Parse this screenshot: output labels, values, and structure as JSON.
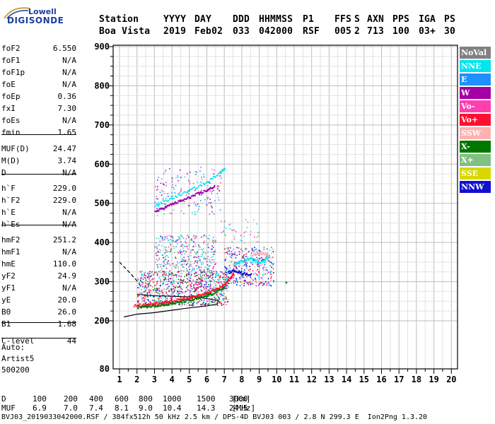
{
  "logo": {
    "line1": "Lowell",
    "line2": "DIGISONDE"
  },
  "header": {
    "labels": [
      "Station",
      "YYYY",
      "DAY",
      "DDD",
      "HHMMSS",
      "P1",
      "FFS",
      "S",
      "AXN",
      "PPS",
      "IGA",
      "PS"
    ],
    "values": [
      "Boa Vista",
      "2019",
      "Feb02",
      "033",
      "042000",
      "RSF",
      "005",
      "2",
      "713",
      "100",
      "03+",
      "30"
    ]
  },
  "params": {
    "group1": [
      {
        "name": "foF2",
        "value": "6.550"
      },
      {
        "name": "foF1",
        "value": "N/A"
      },
      {
        "name": "foF1p",
        "value": "N/A"
      },
      {
        "name": "foE",
        "value": "N/A"
      },
      {
        "name": "foEp",
        "value": "0.36"
      },
      {
        "name": "fxI",
        "value": "7.30"
      },
      {
        "name": "foEs",
        "value": "N/A"
      },
      {
        "name": "fmin",
        "value": "1.65"
      }
    ],
    "group2": [
      {
        "name": "MUF(D)",
        "value": "24.47"
      },
      {
        "name": "M(D)",
        "value": "3.74"
      },
      {
        "name": "D",
        "value": "N/A"
      }
    ],
    "group3": [
      {
        "name": "h`F",
        "value": "229.0"
      },
      {
        "name": "h`F2",
        "value": "229.0"
      },
      {
        "name": "h`E",
        "value": "N/A"
      },
      {
        "name": "h`Es",
        "value": "N/A"
      }
    ],
    "group4": [
      {
        "name": "hmF2",
        "value": "251.2"
      },
      {
        "name": "hmF1",
        "value": "N/A"
      },
      {
        "name": "hmE",
        "value": "110.0"
      },
      {
        "name": "yF2",
        "value": "24.9"
      },
      {
        "name": "yF1",
        "value": "N/A"
      },
      {
        "name": "yE",
        "value": "20.0"
      },
      {
        "name": "B0",
        "value": "26.0"
      },
      {
        "name": "B1",
        "value": "1.68"
      }
    ],
    "group5": [
      {
        "name": "C-level",
        "value": "44"
      }
    ]
  },
  "auto": [
    "Auto:",
    "Artist5",
    "500200"
  ],
  "legend": [
    {
      "label": "NoVal",
      "color": "#808080"
    },
    {
      "label": "NNE",
      "color": "#00e5f0"
    },
    {
      "label": "E",
      "color": "#1e90ff"
    },
    {
      "label": "W",
      "color": "#a400a4"
    },
    {
      "label": "Vo-",
      "color": "#ff3fb0"
    },
    {
      "label": "Vo+",
      "color": "#ff1030"
    },
    {
      "label": "SSW",
      "color": "#ffb0b0"
    },
    {
      "label": "X-",
      "color": "#007800"
    },
    {
      "label": "X+",
      "color": "#80c080"
    },
    {
      "label": "SSE",
      "color": "#d8d800"
    },
    {
      "label": "NNW",
      "color": "#1010d0"
    }
  ],
  "bottom": {
    "d_label": "D",
    "d_values": [
      "100",
      "200",
      "400",
      "600",
      "800",
      "1000",
      "1500",
      "3000"
    ],
    "d_unit": "[km]",
    "muf_label": "MUF",
    "muf_values": [
      "6.9",
      "7.0",
      "7.4",
      "8.1",
      "9.0",
      "10.4",
      "14.3",
      "24.5"
    ],
    "muf_unit": "[MHz]",
    "footer": "BVJ03_2019033042000.RSF / 384fx512h 50 kHz 2.5 km / DPS-4D BVJ03 003 / 2.8 N 299.3 E  Ion2Png 1.3.20"
  },
  "chart_data": {
    "type": "scatter",
    "x_ticks": [
      1,
      2,
      3,
      4,
      5,
      6,
      7,
      8,
      9,
      10,
      11,
      12,
      13,
      14,
      15,
      16,
      17,
      18,
      19,
      20
    ],
    "y_ticks": [
      80,
      200,
      300,
      400,
      500,
      600,
      700,
      800,
      900
    ],
    "xlim": [
      1,
      20
    ],
    "ylim": [
      80,
      900
    ],
    "y_axis_note": "nonlinear: 80 at bottom, linear 200-900",
    "grid": true,
    "traces": [
      {
        "name": "Vo+",
        "color": "#ff1030",
        "points": [
          [
            1.8,
            240
          ],
          [
            2.5,
            243
          ],
          [
            3,
            246
          ],
          [
            3.5,
            249
          ],
          [
            4,
            252
          ],
          [
            4.5,
            256
          ],
          [
            5,
            261
          ],
          [
            5.5,
            266
          ],
          [
            6,
            272
          ],
          [
            6.5,
            282
          ],
          [
            7,
            295
          ],
          [
            7.3,
            310
          ],
          [
            7.5,
            322
          ]
        ]
      },
      {
        "name": "X-",
        "color": "#007800",
        "points": [
          [
            2,
            236
          ],
          [
            2.5,
            238
          ],
          [
            3,
            240
          ],
          [
            3.5,
            243
          ],
          [
            4,
            246
          ],
          [
            4.5,
            250
          ],
          [
            5,
            254
          ],
          [
            5.5,
            259
          ],
          [
            6,
            266
          ],
          [
            6.5,
            275
          ],
          [
            7,
            288
          ]
        ]
      },
      {
        "name": "W",
        "color": "#a400a4",
        "points": [
          [
            3,
            480
          ],
          [
            3.5,
            490
          ],
          [
            4,
            500
          ],
          [
            4.5,
            508
          ],
          [
            5,
            517
          ],
          [
            5.5,
            527
          ],
          [
            6,
            535
          ],
          [
            6.4,
            545
          ]
        ]
      },
      {
        "name": "NNE",
        "color": "#00e5f0",
        "points": [
          [
            3,
            495
          ],
          [
            4,
            515
          ],
          [
            5,
            535
          ],
          [
            6,
            555
          ],
          [
            6.7,
            580
          ],
          [
            7,
            590
          ]
        ]
      },
      {
        "name": "SSW",
        "color": "#ffb0b0",
        "points": [
          [
            8.5,
            370
          ],
          [
            9,
            374
          ],
          [
            9.5,
            372
          ]
        ]
      },
      {
        "name": "NNW",
        "color": "#1010d0",
        "points": [
          [
            7.2,
            325
          ],
          [
            7.6,
            330
          ],
          [
            8,
            322
          ],
          [
            8.5,
            320
          ]
        ]
      },
      {
        "name": "NNE",
        "color": "#00e5f0",
        "points": [
          [
            7.5,
            345
          ],
          [
            8,
            355
          ],
          [
            8.5,
            360
          ],
          [
            9,
            350
          ],
          [
            9.5,
            365
          ]
        ]
      },
      {
        "name": "X-",
        "color": "#007800",
        "points": [
          [
            10.5,
            300
          ]
        ]
      }
    ],
    "profile_curve": {
      "name": "profile",
      "color": "#000000",
      "points": [
        [
          1.25,
          210
        ],
        [
          2,
          217
        ],
        [
          3,
          221
        ],
        [
          4,
          227
        ],
        [
          5,
          233
        ],
        [
          6,
          238
        ],
        [
          6.6,
          243
        ],
        [
          6.65,
          252
        ],
        [
          5.5,
          260
        ],
        [
          4.5,
          262
        ],
        [
          3,
          264
        ],
        [
          2,
          268
        ]
      ]
    },
    "dashed_curve": {
      "name": "MUF",
      "color": "#000000",
      "points": [
        [
          1.0,
          350
        ],
        [
          1.5,
          327
        ],
        [
          2.0,
          302
        ],
        [
          2.2,
          290
        ]
      ]
    }
  }
}
